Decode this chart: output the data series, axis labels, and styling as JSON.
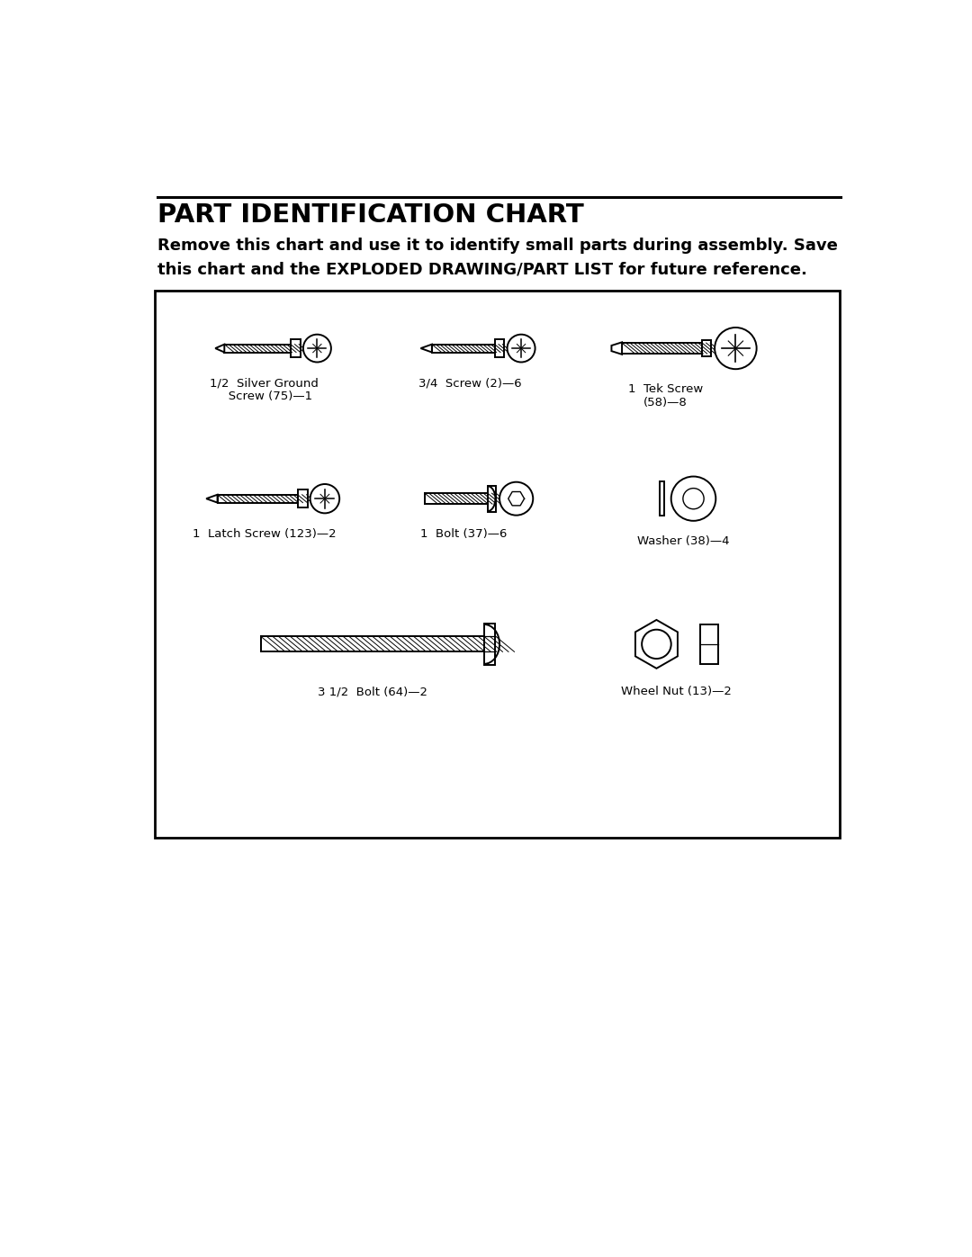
{
  "title": "PART IDENTIFICATION CHART",
  "subtitle_line1": "Remove this chart and use it to identify small parts during assembly. Save",
  "subtitle_line2": "this chart and the EXPLODED DRAWING/PART LIST for future reference.",
  "bg_color": "#ffffff",
  "line_color": "#000000",
  "text_color": "#000000"
}
